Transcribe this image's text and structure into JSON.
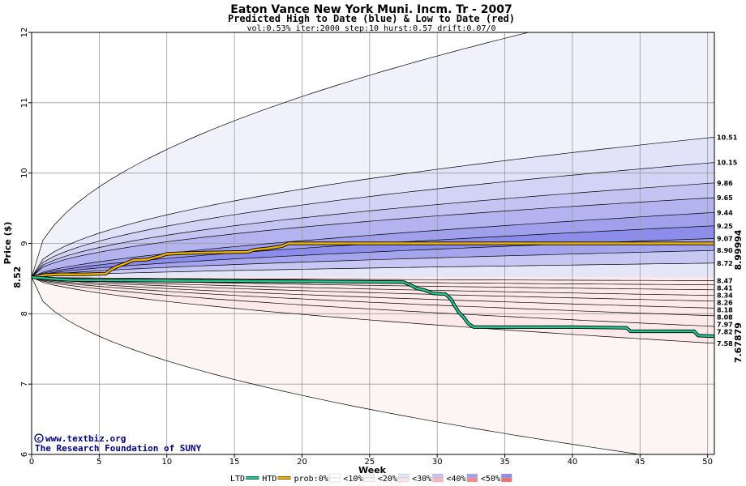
{
  "chart_data": {
    "type": "area",
    "title": "Eaton Vance New York Muni. Incm. Tr - 2007",
    "subtitle": "Predicted High to Date (blue) &  Low to Date (red)",
    "parameters": "vol:0.53% iter:2000 step:10 hurst:0.57 drift:0.07/0",
    "xlabel": "Week",
    "ylabel": "Price ($)",
    "xlim": [
      0,
      50.5
    ],
    "ylim": [
      6,
      12
    ],
    "x_ticks": [
      0,
      5,
      10,
      15,
      20,
      25,
      30,
      35,
      40,
      45,
      50
    ],
    "y_ticks": [
      6,
      7,
      8,
      9,
      10,
      11,
      12
    ],
    "grid": true,
    "start_price": 8.52,
    "start_price_label": "8.52",
    "high_band_ends": [
      10.51,
      10.15,
      9.86,
      9.65,
      9.44,
      9.25,
      9.07,
      8.9,
      8.72
    ],
    "low_band_ends": [
      8.47,
      8.41,
      8.34,
      8.26,
      8.18,
      8.08,
      7.97,
      7.82,
      7.58
    ],
    "high_band_labels": [
      "10.51",
      "10.15",
      "9.86",
      "9.65",
      "9.44",
      "9.25",
      "9.07",
      "8.90",
      "8.72"
    ],
    "low_band_labels": [
      "8.47",
      "8.41",
      "8.34",
      "8.26",
      "8.18",
      "8.08",
      "7.97",
      "7.82",
      "7.58"
    ],
    "outer_high_end": 12.6,
    "outer_low_end": 5.85,
    "high_band_colors": [
      "#f1f1fb",
      "#e2e2f8",
      "#d3d3f5",
      "#c4c4f2",
      "#b3b3f0",
      "#a0a0ed",
      "#8c8ceb",
      "#a5a5ee",
      "#c7c7f3",
      "#e6e6f9"
    ],
    "low_band_colors": [
      "#fdf4f4",
      "#fde3e3",
      "#fbcccc",
      "#f9b6b6",
      "#f7a0a0",
      "#f48a8a",
      "#f49a9a",
      "#f7b4b4",
      "#fad0d0",
      "#fde9e9"
    ],
    "series": [
      {
        "name": "HTD",
        "color": "#f0b400",
        "end_label": "8.99994",
        "points": [
          [
            0,
            8.52
          ],
          [
            1,
            8.55
          ],
          [
            2,
            8.56
          ],
          [
            4,
            8.56
          ],
          [
            5.5,
            8.57
          ],
          [
            5.8,
            8.62
          ],
          [
            6.3,
            8.67
          ],
          [
            7,
            8.72
          ],
          [
            7.5,
            8.76
          ],
          [
            8.5,
            8.77
          ],
          [
            9.5,
            8.82
          ],
          [
            10,
            8.85
          ],
          [
            11,
            8.86
          ],
          [
            13,
            8.87
          ],
          [
            16,
            8.88
          ],
          [
            16.5,
            8.91
          ],
          [
            17.5,
            8.93
          ],
          [
            18.5,
            8.96
          ],
          [
            19,
            9.0
          ],
          [
            25,
            9.0
          ],
          [
            35,
            9.0
          ],
          [
            50.5,
            9.0
          ]
        ]
      },
      {
        "name": "LTD",
        "color": "#20c896",
        "end_label": "7.67879",
        "points": [
          [
            0,
            8.52
          ],
          [
            2,
            8.49
          ],
          [
            3,
            8.48
          ],
          [
            10,
            8.47
          ],
          [
            20,
            8.46
          ],
          [
            27.5,
            8.45
          ],
          [
            28,
            8.41
          ],
          [
            28.5,
            8.36
          ],
          [
            29,
            8.34
          ],
          [
            29.7,
            8.29
          ],
          [
            30.6,
            8.28
          ],
          [
            31,
            8.21
          ],
          [
            31.3,
            8.11
          ],
          [
            31.6,
            8.02
          ],
          [
            32,
            7.94
          ],
          [
            32.3,
            7.86
          ],
          [
            32.7,
            7.81
          ],
          [
            36,
            7.81
          ],
          [
            40,
            7.81
          ],
          [
            44,
            7.8
          ],
          [
            44.3,
            7.75
          ],
          [
            49,
            7.75
          ],
          [
            49.3,
            7.69
          ],
          [
            50.5,
            7.68
          ]
        ]
      }
    ],
    "legend": {
      "placement": "bottom",
      "items": [
        {
          "label": "LTD",
          "type": "line",
          "color": "#20c896"
        },
        {
          "label": "HTD",
          "type": "line",
          "color": "#f0b400"
        },
        {
          "label": "prob:0%",
          "type": "swatch",
          "top": "#ffffff",
          "bottom": "#ffffff"
        },
        {
          "label": "<10%",
          "type": "swatch",
          "top": "#f1f1fb",
          "bottom": "#fdf4f4"
        },
        {
          "label": "<20%",
          "type": "swatch",
          "top": "#e2e2f8",
          "bottom": "#fde3e3"
        },
        {
          "label": "<30%",
          "type": "swatch",
          "top": "#c4c4f2",
          "bottom": "#f9b6b6"
        },
        {
          "label": "<40%",
          "type": "swatch",
          "top": "#a0a0ed",
          "bottom": "#f48a8a"
        },
        {
          "label": "<50%",
          "type": "swatch",
          "top": "#8c8ceb",
          "bottom": "#f47070"
        }
      ]
    }
  },
  "credit": {
    "url": "www.textbiz.org",
    "org": "The Research Foundation of SUNY"
  }
}
